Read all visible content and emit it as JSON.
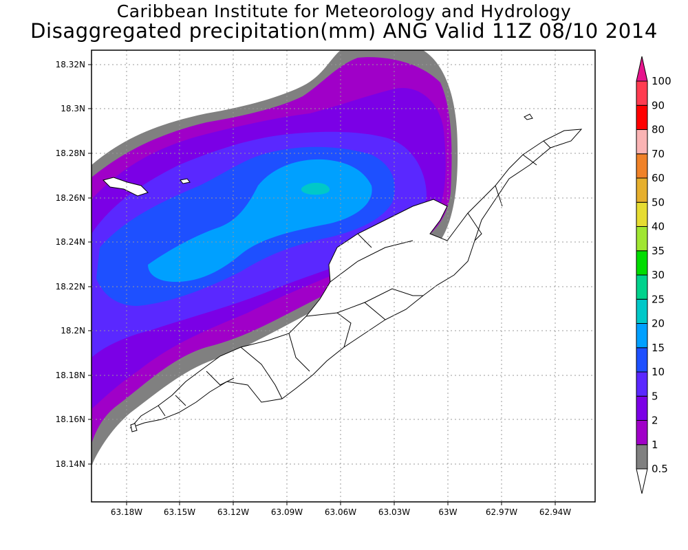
{
  "title_line1": "Caribbean Institute for Meteorology and Hydrology",
  "title_line2": "Disaggregated precipitation(mm) ANG Valid 11Z 08/10 2014",
  "axes": {
    "lat_labels": [
      "18.32N",
      "18.3N",
      "18.28N",
      "18.26N",
      "18.24N",
      "18.22N",
      "18.2N",
      "18.18N",
      "18.16N",
      "18.14N"
    ],
    "lon_labels": [
      "63.18W",
      "63.15W",
      "63.12W",
      "63.09W",
      "63.06W",
      "63.03W",
      "63W",
      "62.97W",
      "62.94W"
    ]
  },
  "colorbar": {
    "labels": [
      "0.5",
      "1",
      "2",
      "5",
      "10",
      "15",
      "20",
      "25",
      "30",
      "35",
      "40",
      "50",
      "60",
      "70",
      "80",
      "90",
      "100"
    ],
    "colors": [
      "#ffffff",
      "#808080",
      "#a000c8",
      "#7b00e6",
      "#5a28ff",
      "#1e50ff",
      "#00a0ff",
      "#00c8c8",
      "#00d28c",
      "#00dc00",
      "#a0e632",
      "#e6dc32",
      "#e6af2d",
      "#f08228",
      "#fab4b4",
      "#ff0000",
      "#ff3c50",
      "#e6148c"
    ]
  },
  "layer_colors": {
    "c0_5": "#808080",
    "c1": "#a000c8",
    "c2": "#7b00e6",
    "c5": "#5a28ff",
    "c10": "#1e50ff",
    "c15": "#00a0ff",
    "c20": "#00c8c8"
  }
}
